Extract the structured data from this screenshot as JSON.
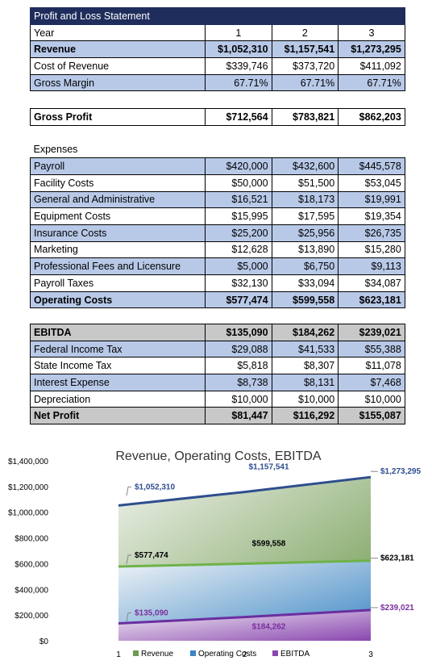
{
  "statement": {
    "title": "Profit and Loss Statement",
    "year_label": "Year",
    "years": [
      "1",
      "2",
      "3"
    ],
    "top_rows": [
      {
        "label": "Revenue",
        "values": [
          "$1,052,310",
          "$1,157,541",
          "$1,273,295"
        ]
      },
      {
        "label": "Cost of Revenue",
        "values": [
          "$339,746",
          "$373,720",
          "$411,092"
        ]
      },
      {
        "label": "Gross Margin",
        "values": [
          "67.71%",
          "67.71%",
          "67.71%"
        ]
      }
    ],
    "gross_profit": {
      "label": "Gross Profit",
      "values": [
        "$712,564",
        "$783,821",
        "$862,203"
      ]
    },
    "expenses_label": "Expenses",
    "expense_rows": [
      {
        "label": "Payroll",
        "values": [
          "$420,000",
          "$432,600",
          "$445,578"
        ]
      },
      {
        "label": "Facility Costs",
        "values": [
          "$50,000",
          "$51,500",
          "$53,045"
        ]
      },
      {
        "label": "General and Administrative",
        "values": [
          "$16,521",
          "$18,173",
          "$19,991"
        ]
      },
      {
        "label": "Equipment Costs",
        "values": [
          "$15,995",
          "$17,595",
          "$19,354"
        ]
      },
      {
        "label": "Insurance Costs",
        "values": [
          "$25,200",
          "$25,956",
          "$26,735"
        ]
      },
      {
        "label": "Marketing",
        "values": [
          "$12,628",
          "$13,890",
          "$15,280"
        ]
      },
      {
        "label": "Professional Fees and Licensure",
        "values": [
          "$5,000",
          "$6,750",
          "$9,113"
        ]
      },
      {
        "label": "Payroll Taxes",
        "values": [
          "$32,130",
          "$33,094",
          "$34,087"
        ]
      },
      {
        "label": "Operating Costs",
        "values": [
          "$577,474",
          "$599,558",
          "$623,181"
        ]
      }
    ],
    "ebitda_rows": [
      {
        "label": "EBITDA",
        "values": [
          "$135,090",
          "$184,262",
          "$239,021"
        ]
      },
      {
        "label": "Federal Income Tax",
        "values": [
          "$29,088",
          "$41,533",
          "$55,388"
        ]
      },
      {
        "label": "State Income Tax",
        "values": [
          "$5,818",
          "$8,307",
          "$11,078"
        ]
      },
      {
        "label": "Interest Expense",
        "values": [
          "$8,738",
          "$8,131",
          "$7,468"
        ]
      },
      {
        "label": "Depreciation",
        "values": [
          "$10,000",
          "$10,000",
          "$10,000"
        ]
      },
      {
        "label": "Net Profit",
        "values": [
          "$81,447",
          "$116,292",
          "$155,087"
        ]
      }
    ]
  },
  "chart_data": {
    "type": "area",
    "title": "Revenue, Operating Costs, EBITDA",
    "categories": [
      "1",
      "2",
      "3"
    ],
    "y_ticks": [
      "$0",
      "$200,000",
      "$400,000",
      "$600,000",
      "$800,000",
      "$1,000,000",
      "$1,200,000",
      "$1,400,000"
    ],
    "ylim": [
      0,
      1400000
    ],
    "grid": false,
    "legend_position": "bottom",
    "series": [
      {
        "name": "Revenue",
        "values": [
          1052310,
          1157541,
          1273295
        ],
        "labels": [
          "$1,052,310",
          "$1,157,541",
          "$1,273,295"
        ],
        "line_color": "#2e4e8e",
        "fill_light": "#eef1ea",
        "fill_dark": "#6e9a4e",
        "label_color": "#2e4e8e"
      },
      {
        "name": "Operating Costs",
        "values": [
          577474,
          599558,
          623181
        ],
        "labels": [
          "$577,474",
          "$599,558",
          "$623,181"
        ],
        "line_color": "#6fb24a",
        "fill_light": "#eef2f6",
        "fill_dark": "#3b86c4",
        "label_color": "#000000"
      },
      {
        "name": "EBITDA",
        "values": [
          135090,
          184262,
          239021
        ],
        "labels": [
          "$135,090",
          "$184,262",
          "$239,021"
        ],
        "line_color": "#6a2fa0",
        "fill_light": "#f2eef4",
        "fill_dark": "#8a46b0",
        "label_color": "#7a2f9e"
      }
    ]
  }
}
